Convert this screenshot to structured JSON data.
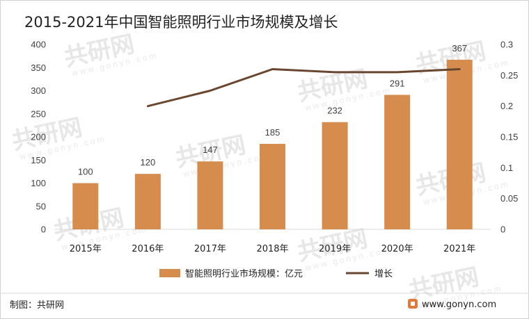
{
  "chart_data": {
    "type": "bar",
    "title": "2015-2021年中国智能照明行业市场规模及增长",
    "categories": [
      "2015年",
      "2016年",
      "2017年",
      "2018年",
      "2019年",
      "2020年",
      "2021年"
    ],
    "series": [
      {
        "name": "智能照明行业市场规模：亿元",
        "type": "bar",
        "axis": "left",
        "color": "#d58c4c",
        "values": [
          100,
          120,
          147,
          185,
          232,
          291,
          367
        ]
      },
      {
        "name": "增长",
        "type": "line",
        "axis": "right",
        "color": "#6a4630",
        "values": [
          null,
          0.2,
          0.225,
          0.26,
          0.255,
          0.255,
          0.26
        ]
      }
    ],
    "y_left": {
      "min": 0,
      "max": 400,
      "ticks": [
        "0",
        "50",
        "100",
        "150",
        "200",
        "250",
        "300",
        "350",
        "400"
      ]
    },
    "y_right": {
      "min": 0,
      "max": 0.3,
      "ticks": [
        "0",
        "0.05",
        "0.1",
        "0.15",
        "0.2",
        "0.25",
        "0.3"
      ]
    },
    "data_labels": [
      "100",
      "120",
      "147",
      "185",
      "232",
      "291",
      "367"
    ],
    "legend_position": "bottom",
    "grid": false
  },
  "footer": {
    "source": "制图：共研网",
    "website": "www.gonyn.com"
  },
  "watermark": {
    "brand": "共研网",
    "domain": "www.gonyn.com"
  }
}
